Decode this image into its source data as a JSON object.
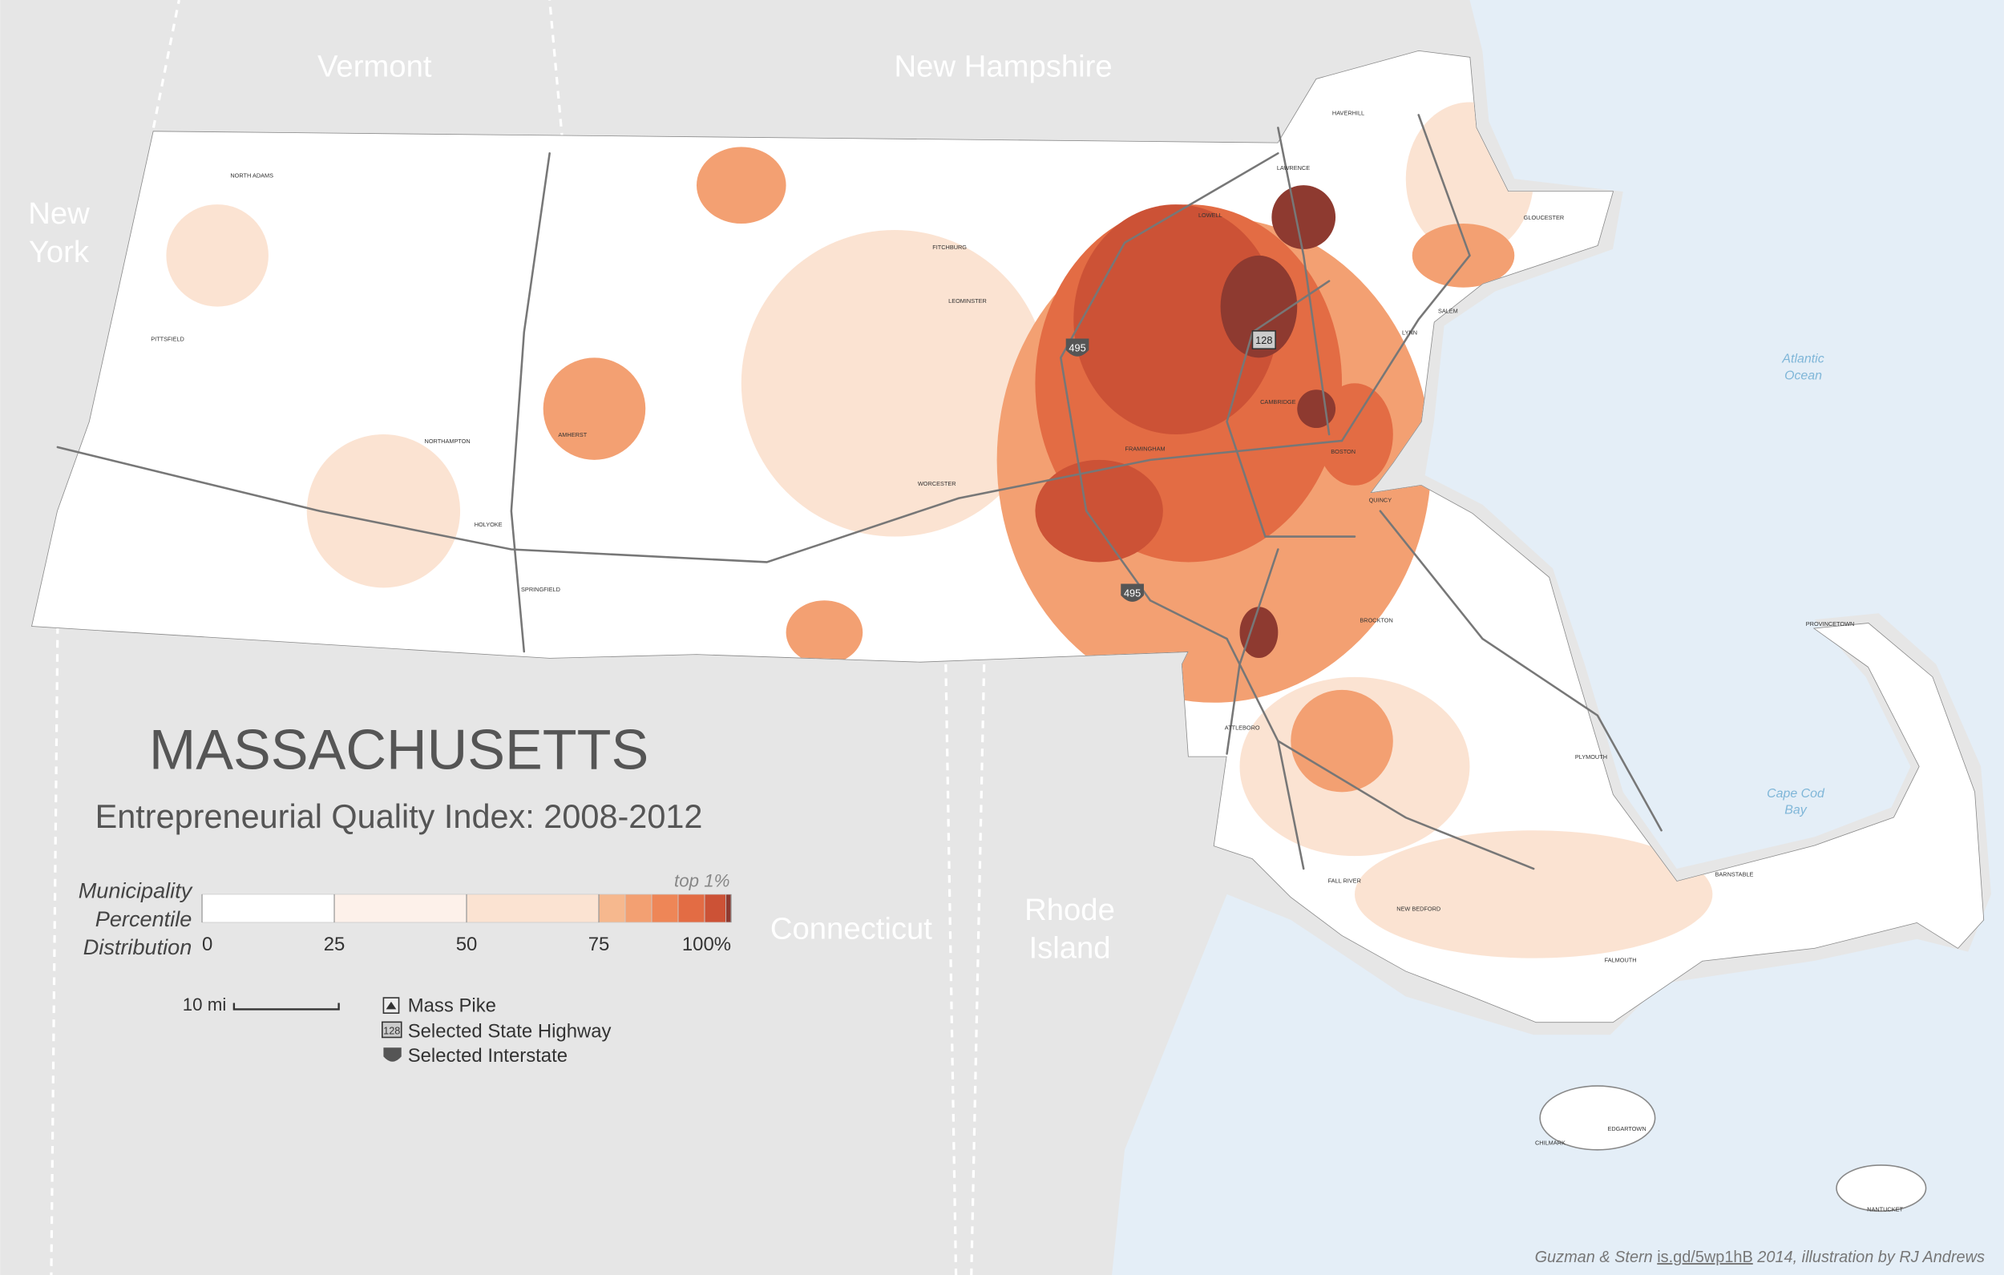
{
  "neighbors": [
    [
      "Vermont"
    ],
    [
      "New Hampshire"
    ],
    [
      "New",
      "York"
    ],
    [
      "Connecticut"
    ],
    [
      "Rhode",
      "Island"
    ]
  ],
  "water": [
    [
      "Atlantic",
      "Ocean"
    ],
    [
      "Cape Cod",
      "Bay"
    ]
  ],
  "title": "MASSACHUSETTS",
  "subtitle": "Entrepreneurial Quality Index: 2008-2012",
  "legend": {
    "title_lines": [
      "Municipality",
      "Percentile",
      "Distribution"
    ],
    "top_note": "top 1%",
    "bins": [
      0,
      25,
      50,
      75,
      80,
      85,
      90,
      95,
      99,
      100
    ],
    "colors": [
      "#ffffff",
      "#fdf1ea",
      "#fbe3d2",
      "#f6b88e",
      "#f3a072",
      "#ee8657",
      "#e36c44",
      "#cc5236",
      "#8e3a30"
    ],
    "ticks": [
      0,
      25,
      50,
      75,
      {
        "value": 100,
        "label": "100%"
      }
    ]
  },
  "scale_bar": "10 mi",
  "road_legend": {
    "items": [
      "Mass Pike",
      "Selected State Highway",
      "Selected Interstate"
    ],
    "state_shield": "128"
  },
  "shields": [
    "495",
    "128",
    "495"
  ],
  "towns": [
    "PITTSFIELD",
    "NORTH ADAMS",
    "WORCESTER",
    "SPRINGFIELD",
    "HOLYOKE",
    "NORTHAMPTON",
    "AMHERST",
    "FITCHBURG",
    "LEOMINSTER",
    "LOWELL",
    "LAWRENCE",
    "HAVERHILL",
    "BOSTON",
    "CAMBRIDGE",
    "QUINCY",
    "BROCKTON",
    "FRAMINGHAM",
    "PLYMOUTH",
    "BARNSTABLE",
    "FALMOUTH",
    "NEW BEDFORD",
    "FALL RIVER",
    "ATTLEBORO",
    "GLOUCESTER",
    "SALEM",
    "LYNN",
    "PROVINCETOWN",
    "NANTUCKET",
    "CHILMARK",
    "EDGARTOWN"
  ],
  "credit": {
    "pre": "Guzman & Stern",
    "link": "is.gd/5wp1hB",
    "post": "2014, illustration by RJ Andrews"
  }
}
